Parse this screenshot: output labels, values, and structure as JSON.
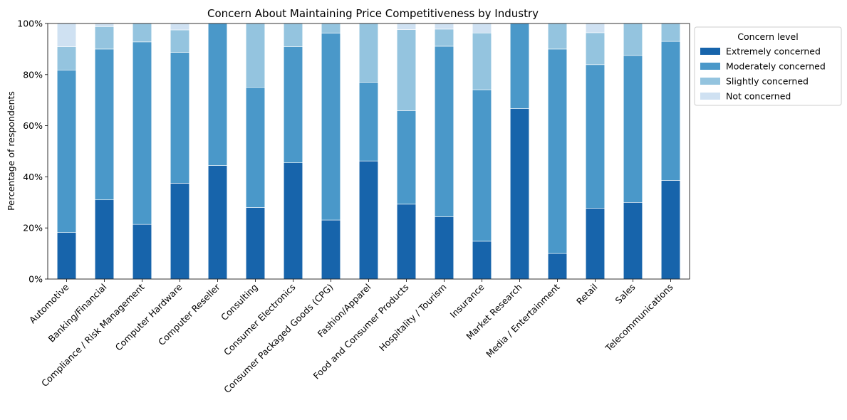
{
  "chart_data": {
    "type": "bar",
    "stacked": true,
    "title": "Concern About Maintaining Price Competitiveness by Industry",
    "xlabel": "",
    "ylabel": "Percentage of respondents",
    "ylim": [
      0,
      100
    ],
    "yticks": [
      "0%",
      "20%",
      "40%",
      "60%",
      "80%",
      "100%"
    ],
    "categories": [
      "Automotive",
      "Banking/Financial",
      "Compliance / Risk Management",
      "Computer Hardware",
      "Computer Reseller",
      "Consulting",
      "Consumer Electronics",
      "Consumer Packaged Goods (CPG)",
      "Fashion/Apparel",
      "Food and Consumer Products",
      "Hospitality / Tourism",
      "Insurance",
      "Market Research",
      "Media / Entertainment",
      "Retail",
      "Sales",
      "Telecommunications"
    ],
    "series": [
      {
        "name": "Extremely concerned",
        "color": "#1764ab",
        "values": [
          18.2,
          31.0,
          21.4,
          37.5,
          44.4,
          28.0,
          45.5,
          23.1,
          46.2,
          29.3,
          24.4,
          14.8,
          66.7,
          10.0,
          27.7,
          30.0,
          38.6
        ]
      },
      {
        "name": "Moderately concerned",
        "color": "#4a98c9",
        "values": [
          63.6,
          59.0,
          71.4,
          51.2,
          55.6,
          47.0,
          45.4,
          73.1,
          30.8,
          36.6,
          66.7,
          59.3,
          33.3,
          80.0,
          56.2,
          57.5,
          54.4
        ]
      },
      {
        "name": "Slightly concerned",
        "color": "#94c4df",
        "values": [
          9.1,
          8.8,
          7.2,
          8.8,
          0.0,
          25.0,
          9.1,
          3.8,
          23.0,
          31.7,
          6.7,
          22.2,
          0.0,
          10.0,
          12.5,
          12.5,
          7.0
        ]
      },
      {
        "name": "Not concerned",
        "color": "#cfe1f2",
        "values": [
          9.1,
          1.2,
          0.0,
          2.5,
          0.0,
          0.0,
          0.0,
          0.0,
          0.0,
          2.4,
          2.2,
          3.7,
          0.0,
          0.0,
          3.6,
          0.0,
          0.0
        ]
      }
    ],
    "legend": {
      "title": "Concern level",
      "position": "outside-right-top"
    }
  }
}
